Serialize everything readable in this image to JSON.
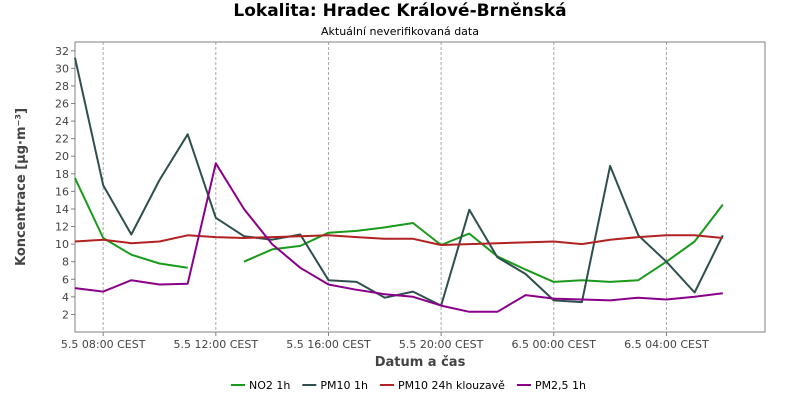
{
  "chart_data": {
    "type": "line",
    "title": "Lokalita: Hradec Králové-Brněnská",
    "subtitle": "Aktuální neverifikovaná data",
    "xlabel": "Datum a čas",
    "ylabel": "Koncentrace [µg·m⁻³]",
    "ylim": [
      0,
      33
    ],
    "yticks": [
      2,
      4,
      6,
      8,
      10,
      12,
      14,
      16,
      18,
      20,
      22,
      24,
      26,
      28,
      30,
      32
    ],
    "xlim": [
      "5.5 07:00",
      "6.5 07:30"
    ],
    "x_tick_labels": [
      {
        "x": "5.5 08:00",
        "label": "5.5 08:00 CEST"
      },
      {
        "x": "5.5 12:00",
        "label": "5.5 12:00 CEST"
      },
      {
        "x": "5.5 16:00",
        "label": "5.5 16:00 CEST"
      },
      {
        "x": "5.5 20:00",
        "label": "5.5 20:00 CEST"
      },
      {
        "x": "6.5 00:00",
        "label": "6.5 00:00 CEST"
      },
      {
        "x": "6.5 04:00",
        "label": "6.5 04:00 CEST"
      }
    ],
    "x": [
      "5.5 07:00",
      "5.5 08:00",
      "5.5 09:00",
      "5.5 10:00",
      "5.5 11:00",
      "5.5 12:00",
      "5.5 13:00",
      "5.5 14:00",
      "5.5 15:00",
      "5.5 16:00",
      "5.5 17:00",
      "5.5 18:00",
      "5.5 19:00",
      "5.5 20:00",
      "5.5 21:00",
      "5.5 22:00",
      "5.5 23:00",
      "6.5 00:00",
      "6.5 01:00",
      "6.5 02:00",
      "6.5 03:00",
      "6.5 04:00",
      "6.5 05:00",
      "6.5 06:00"
    ],
    "grid": true,
    "legend_position": "bottom",
    "series": [
      {
        "name": "NO2 1h",
        "color": "#1a9a1a",
        "values": [
          17.5,
          10.7,
          8.8,
          7.8,
          7.3,
          null,
          8.0,
          9.4,
          9.8,
          11.3,
          11.5,
          11.9,
          12.4,
          9.9,
          11.2,
          8.6,
          7.1,
          5.7,
          5.9,
          5.7,
          5.9,
          8.0,
          10.3,
          14.5
        ]
      },
      {
        "name": "PM10 1h",
        "color": "#2f4f4f",
        "values": [
          31.2,
          16.7,
          11.1,
          17.3,
          22.5,
          13.0,
          10.9,
          10.5,
          11.1,
          5.9,
          5.7,
          3.9,
          4.6,
          3.0,
          13.9,
          8.5,
          6.6,
          3.6,
          3.4,
          18.9,
          11.0,
          8.0,
          4.5,
          11.0
        ]
      },
      {
        "name": "PM10 24h klouzavě",
        "color": "#b22222",
        "values": [
          10.3,
          10.5,
          10.1,
          10.3,
          11.0,
          10.8,
          10.7,
          10.8,
          10.9,
          11.0,
          10.8,
          10.6,
          10.6,
          9.9,
          10.0,
          10.1,
          10.2,
          10.3,
          10.0,
          10.5,
          10.8,
          11.0,
          11.0,
          10.7
        ]
      },
      {
        "name": "PM2,5 1h",
        "color": "#8b008b",
        "values": [
          5.0,
          4.6,
          5.9,
          5.4,
          5.5,
          19.2,
          14.0,
          10.0,
          7.3,
          5.4,
          4.8,
          4.3,
          4.0,
          3.0,
          2.3,
          2.3,
          4.2,
          3.8,
          3.7,
          3.6,
          3.9,
          3.7,
          4.0,
          4.4
        ]
      }
    ]
  }
}
